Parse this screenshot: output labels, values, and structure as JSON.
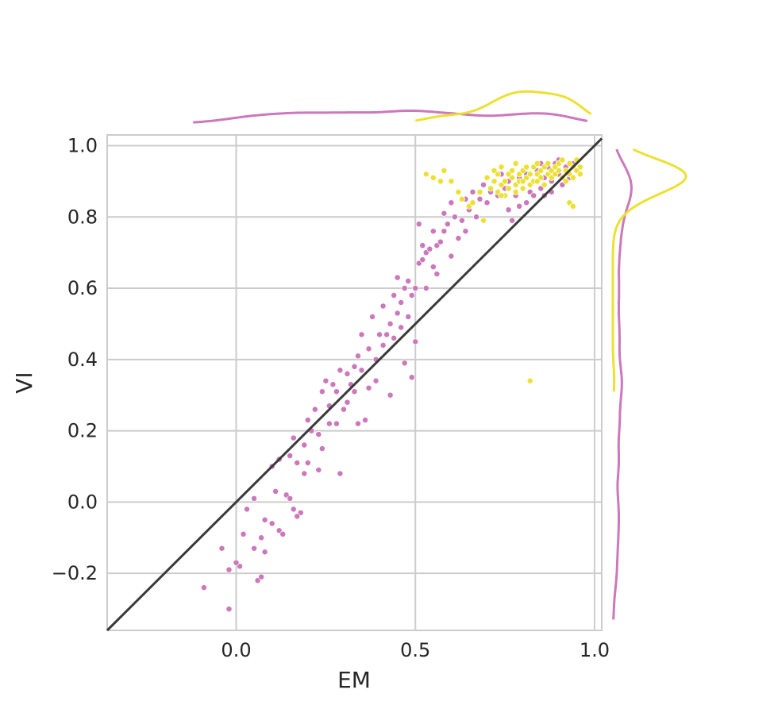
{
  "chart_data": {
    "type": "scatter",
    "title": "",
    "xlabel": "EM",
    "ylabel": "VI",
    "xlim": [
      -0.36,
      1.02
    ],
    "ylim": [
      -0.36,
      1.03
    ],
    "xticks": [
      0.0,
      0.5,
      1.0
    ],
    "xtick_labels": [
      "0.0",
      "0.5",
      "1.0"
    ],
    "yticks": [
      -0.2,
      0.0,
      0.2,
      0.4,
      0.6,
      0.8,
      1.0
    ],
    "ytick_labels": [
      "−0.2",
      "0.0",
      "0.2",
      "0.4",
      "0.6",
      "0.8",
      "1.0"
    ],
    "grid": true,
    "reference_line": {
      "type": "identity",
      "color": "#3a3a3a"
    },
    "marginals": {
      "top": "kde",
      "right": "kde"
    },
    "series": [
      {
        "color": "#cc78bc",
        "points": [
          [
            -0.09,
            -0.24
          ],
          [
            -0.02,
            -0.3
          ],
          [
            -0.04,
            -0.13
          ],
          [
            -0.02,
            -0.19
          ],
          [
            0.01,
            -0.18
          ],
          [
            0.0,
            -0.17
          ],
          [
            0.02,
            -0.09
          ],
          [
            0.03,
            -0.02
          ],
          [
            0.05,
            -0.13
          ],
          [
            0.06,
            -0.22
          ],
          [
            0.07,
            -0.21
          ],
          [
            0.07,
            -0.1
          ],
          [
            0.08,
            -0.14
          ],
          [
            0.05,
            0.01
          ],
          [
            0.08,
            -0.05
          ],
          [
            0.1,
            0.1
          ],
          [
            0.11,
            0.03
          ],
          [
            0.1,
            -0.06
          ],
          [
            0.12,
            0.12
          ],
          [
            0.12,
            -0.08
          ],
          [
            0.13,
            -0.09
          ],
          [
            0.14,
            0.02
          ],
          [
            0.15,
            0.01
          ],
          [
            0.16,
            -0.02
          ],
          [
            0.15,
            0.13
          ],
          [
            0.16,
            0.18
          ],
          [
            0.17,
            0.11
          ],
          [
            0.18,
            -0.03
          ],
          [
            0.17,
            -0.04
          ],
          [
            0.19,
            0.08
          ],
          [
            0.2,
            0.11
          ],
          [
            0.19,
            0.16
          ],
          [
            0.2,
            0.23
          ],
          [
            0.21,
            0.2
          ],
          [
            0.22,
            0.26
          ],
          [
            0.23,
            0.19
          ],
          [
            0.23,
            0.09
          ],
          [
            0.24,
            0.15
          ],
          [
            0.24,
            0.31
          ],
          [
            0.25,
            0.34
          ],
          [
            0.26,
            0.22
          ],
          [
            0.26,
            0.27
          ],
          [
            0.27,
            0.33
          ],
          [
            0.28,
            0.31
          ],
          [
            0.28,
            0.22
          ],
          [
            0.29,
            0.37
          ],
          [
            0.29,
            0.08
          ],
          [
            0.3,
            0.26
          ],
          [
            0.31,
            0.28
          ],
          [
            0.31,
            0.36
          ],
          [
            0.32,
            0.33
          ],
          [
            0.33,
            0.38
          ],
          [
            0.33,
            0.31
          ],
          [
            0.34,
            0.41
          ],
          [
            0.34,
            0.22
          ],
          [
            0.35,
            0.47
          ],
          [
            0.35,
            0.37
          ],
          [
            0.36,
            0.23
          ],
          [
            0.37,
            0.43
          ],
          [
            0.37,
            0.32
          ],
          [
            0.38,
            0.52
          ],
          [
            0.39,
            0.4
          ],
          [
            0.39,
            0.34
          ],
          [
            0.4,
            0.47
          ],
          [
            0.41,
            0.44
          ],
          [
            0.41,
            0.55
          ],
          [
            0.42,
            0.47
          ],
          [
            0.43,
            0.3
          ],
          [
            0.43,
            0.5
          ],
          [
            0.44,
            0.58
          ],
          [
            0.44,
            0.46
          ],
          [
            0.45,
            0.53
          ],
          [
            0.45,
            0.63
          ],
          [
            0.46,
            0.56
          ],
          [
            0.46,
            0.49
          ],
          [
            0.47,
            0.6
          ],
          [
            0.47,
            0.39
          ],
          [
            0.48,
            0.52
          ],
          [
            0.48,
            0.62
          ],
          [
            0.49,
            0.58
          ],
          [
            0.49,
            0.35
          ],
          [
            0.5,
            0.6
          ],
          [
            0.5,
            0.45
          ],
          [
            0.51,
            0.67
          ],
          [
            0.51,
            0.78
          ],
          [
            0.52,
            0.68
          ],
          [
            0.52,
            0.72
          ],
          [
            0.53,
            0.7
          ],
          [
            0.53,
            0.6
          ],
          [
            0.54,
            0.71
          ],
          [
            0.55,
            0.66
          ],
          [
            0.55,
            0.76
          ],
          [
            0.56,
            0.72
          ],
          [
            0.56,
            0.64
          ],
          [
            0.57,
            0.73
          ],
          [
            0.58,
            0.81
          ],
          [
            0.58,
            0.76
          ],
          [
            0.59,
            0.78
          ],
          [
            0.6,
            0.69
          ],
          [
            0.6,
            0.84
          ],
          [
            0.61,
            0.8
          ],
          [
            0.62,
            0.74
          ],
          [
            0.62,
            0.87
          ],
          [
            0.63,
            0.79
          ],
          [
            0.64,
            0.76
          ],
          [
            0.64,
            0.85
          ],
          [
            0.65,
            0.82
          ],
          [
            0.66,
            0.87
          ],
          [
            0.67,
            0.8
          ],
          [
            0.68,
            0.85
          ],
          [
            0.69,
            0.89
          ],
          [
            0.7,
            0.84
          ],
          [
            0.71,
            0.87
          ],
          [
            0.72,
            0.9
          ],
          [
            0.73,
            0.86
          ],
          [
            0.74,
            0.92
          ],
          [
            0.75,
            0.88
          ],
          [
            0.76,
            0.9
          ],
          [
            0.77,
            0.79
          ],
          [
            0.78,
            0.86
          ],
          [
            0.79,
            0.91
          ],
          [
            0.8,
            0.88
          ],
          [
            0.81,
            0.92
          ],
          [
            0.82,
            0.87
          ],
          [
            0.83,
            0.9
          ],
          [
            0.84,
            0.93
          ],
          [
            0.85,
            0.88
          ],
          [
            0.86,
            0.91
          ],
          [
            0.87,
            0.94
          ],
          [
            0.88,
            0.9
          ],
          [
            0.89,
            0.95
          ],
          [
            0.9,
            0.92
          ],
          [
            0.91,
            0.89
          ],
          [
            0.92,
            0.94
          ],
          [
            0.93,
            0.91
          ],
          [
            0.94,
            0.95
          ],
          [
            0.95,
            0.93
          ],
          [
            0.83,
            0.86
          ],
          [
            0.81,
            0.84
          ],
          [
            0.85,
            0.95
          ],
          [
            0.88,
            0.87
          ],
          [
            0.9,
            0.96
          ],
          [
            0.76,
            0.82
          ],
          [
            0.79,
            0.83
          ],
          [
            0.86,
            0.86
          ]
        ]
      },
      {
        "color": "#ece133",
        "points": [
          [
            0.53,
            0.92
          ],
          [
            0.55,
            0.91
          ],
          [
            0.57,
            0.9
          ],
          [
            0.58,
            0.93
          ],
          [
            0.6,
            0.9
          ],
          [
            0.62,
            0.87
          ],
          [
            0.63,
            0.85
          ],
          [
            0.65,
            0.83
          ],
          [
            0.66,
            0.84
          ],
          [
            0.68,
            0.87
          ],
          [
            0.69,
            0.79
          ],
          [
            0.7,
            0.91
          ],
          [
            0.71,
            0.88
          ],
          [
            0.72,
            0.93
          ],
          [
            0.72,
            0.9
          ],
          [
            0.73,
            0.87
          ],
          [
            0.73,
            0.92
          ],
          [
            0.74,
            0.89
          ],
          [
            0.74,
            0.94
          ],
          [
            0.75,
            0.9
          ],
          [
            0.75,
            0.86
          ],
          [
            0.76,
            0.92
          ],
          [
            0.76,
            0.88
          ],
          [
            0.77,
            0.91
          ],
          [
            0.77,
            0.93
          ],
          [
            0.78,
            0.89
          ],
          [
            0.78,
            0.95
          ],
          [
            0.79,
            0.9
          ],
          [
            0.79,
            0.92
          ],
          [
            0.8,
            0.88
          ],
          [
            0.8,
            0.93
          ],
          [
            0.81,
            0.91
          ],
          [
            0.81,
            0.94
          ],
          [
            0.82,
            0.89
          ],
          [
            0.82,
            0.92
          ],
          [
            0.83,
            0.94
          ],
          [
            0.83,
            0.9
          ],
          [
            0.84,
            0.92
          ],
          [
            0.84,
            0.95
          ],
          [
            0.85,
            0.91
          ],
          [
            0.85,
            0.93
          ],
          [
            0.86,
            0.89
          ],
          [
            0.86,
            0.94
          ],
          [
            0.87,
            0.92
          ],
          [
            0.87,
            0.95
          ],
          [
            0.88,
            0.93
          ],
          [
            0.88,
            0.91
          ],
          [
            0.89,
            0.94
          ],
          [
            0.89,
            0.92
          ],
          [
            0.9,
            0.95
          ],
          [
            0.9,
            0.93
          ],
          [
            0.91,
            0.91
          ],
          [
            0.91,
            0.96
          ],
          [
            0.92,
            0.93
          ],
          [
            0.92,
            0.9
          ],
          [
            0.93,
            0.95
          ],
          [
            0.93,
            0.92
          ],
          [
            0.94,
            0.94
          ],
          [
            0.94,
            0.91
          ],
          [
            0.95,
            0.93
          ],
          [
            0.95,
            0.96
          ],
          [
            0.96,
            0.94
          ],
          [
            0.96,
            0.92
          ],
          [
            0.93,
            0.84
          ],
          [
            0.94,
            0.83
          ],
          [
            0.82,
            0.34
          ],
          [
            0.74,
            0.86
          ],
          [
            0.78,
            0.87
          ],
          [
            0.8,
            0.9
          ],
          [
            0.84,
            0.9
          ]
        ]
      }
    ]
  }
}
